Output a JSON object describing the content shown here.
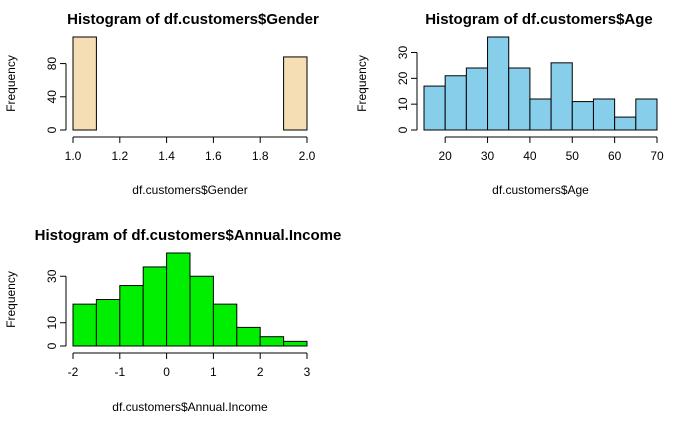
{
  "chart_data": [
    {
      "type": "bar",
      "title": "Histogram of df.customers$Gender",
      "xlabel": "df.customers$Gender",
      "ylabel": "Frequency",
      "xlim": [
        1.0,
        2.0
      ],
      "ylim": [
        0,
        112
      ],
      "xticks": [
        "1.0",
        "1.2",
        "1.4",
        "1.6",
        "1.8",
        "2.0"
      ],
      "yticks": [
        "0",
        "40",
        "80"
      ],
      "color": "#f5deb3",
      "bins": [
        {
          "start": 1.0,
          "end": 1.1,
          "count": 112
        },
        {
          "start": 1.1,
          "end": 1.2,
          "count": 0
        },
        {
          "start": 1.2,
          "end": 1.3,
          "count": 0
        },
        {
          "start": 1.3,
          "end": 1.4,
          "count": 0
        },
        {
          "start": 1.4,
          "end": 1.5,
          "count": 0
        },
        {
          "start": 1.5,
          "end": 1.6,
          "count": 0
        },
        {
          "start": 1.6,
          "end": 1.7,
          "count": 0
        },
        {
          "start": 1.7,
          "end": 1.8,
          "count": 0
        },
        {
          "start": 1.8,
          "end": 1.9,
          "count": 0
        },
        {
          "start": 1.9,
          "end": 2.0,
          "count": 88
        }
      ]
    },
    {
      "type": "bar",
      "title": "Histogram of df.customers$Age",
      "xlabel": "df.customers$Age",
      "ylabel": "Frequency",
      "xlim": [
        15,
        70
      ],
      "ylim": [
        0,
        36
      ],
      "xticks": [
        "20",
        "30",
        "40",
        "50",
        "60",
        "70"
      ],
      "yticks": [
        "0",
        "10",
        "20",
        "30"
      ],
      "color": "#87ceeb",
      "bins": [
        {
          "start": 15,
          "end": 20,
          "count": 17
        },
        {
          "start": 20,
          "end": 25,
          "count": 21
        },
        {
          "start": 25,
          "end": 30,
          "count": 24
        },
        {
          "start": 30,
          "end": 35,
          "count": 36
        },
        {
          "start": 35,
          "end": 40,
          "count": 24
        },
        {
          "start": 40,
          "end": 45,
          "count": 12
        },
        {
          "start": 45,
          "end": 50,
          "count": 26
        },
        {
          "start": 50,
          "end": 55,
          "count": 11
        },
        {
          "start": 55,
          "end": 60,
          "count": 12
        },
        {
          "start": 60,
          "end": 65,
          "count": 5
        },
        {
          "start": 65,
          "end": 70,
          "count": 12
        }
      ]
    },
    {
      "type": "bar",
      "title": "Histogram of df.customers$Annual.Income",
      "xlabel": "df.customers$Annual.Income",
      "ylabel": "Frequency",
      "xlim": [
        -2,
        3
      ],
      "ylim": [
        0,
        40
      ],
      "xticks": [
        "-2",
        "-1",
        "0",
        "1",
        "2",
        "3"
      ],
      "yticks": [
        "0",
        "10",
        "30"
      ],
      "color": "#00ee00",
      "bins": [
        {
          "start": -2.0,
          "end": -1.5,
          "count": 18
        },
        {
          "start": -1.5,
          "end": -1.0,
          "count": 20
        },
        {
          "start": -1.0,
          "end": -0.5,
          "count": 26
        },
        {
          "start": -0.5,
          "end": 0.0,
          "count": 34
        },
        {
          "start": 0.0,
          "end": 0.5,
          "count": 40
        },
        {
          "start": 0.5,
          "end": 1.0,
          "count": 30
        },
        {
          "start": 1.0,
          "end": 1.5,
          "count": 18
        },
        {
          "start": 1.5,
          "end": 2.0,
          "count": 8
        },
        {
          "start": 2.0,
          "end": 2.5,
          "count": 4
        },
        {
          "start": 2.5,
          "end": 3.0,
          "count": 2
        }
      ]
    }
  ]
}
